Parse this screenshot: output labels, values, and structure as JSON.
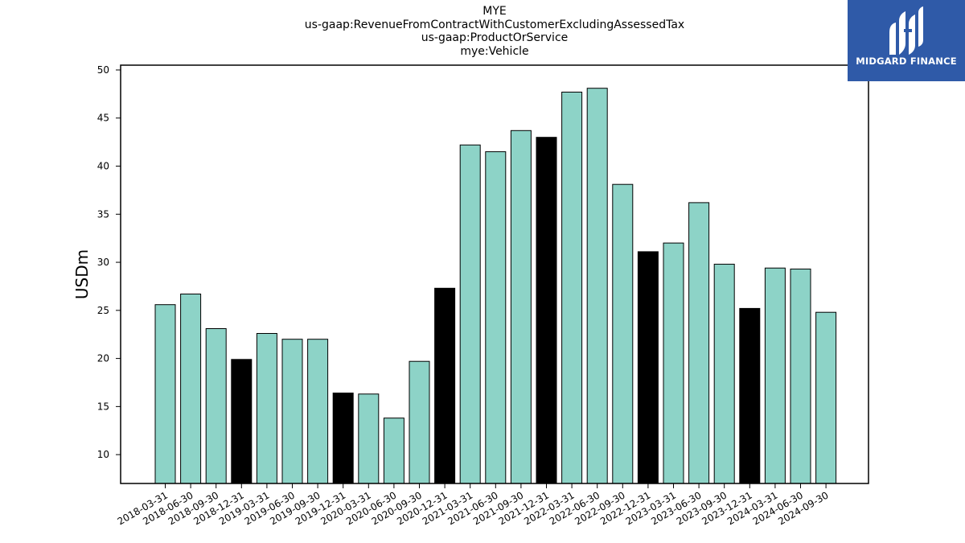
{
  "title_lines": [
    "MYE",
    "us-gaap:RevenueFromContractWithCustomerExcludingAssessedTax",
    "us-gaap:ProductOrService",
    "mye:Vehicle"
  ],
  "logo": {
    "text": "MIDGARD FINANCE",
    "icon": "midgard-logo-mark",
    "background": "#2f5aa8"
  },
  "colors": {
    "bar_default": "#8dd3c7",
    "bar_highlight": "#000000",
    "edge": "#000000"
  },
  "chart_data": {
    "type": "bar",
    "title": "MYE us-gaap:RevenueFromContractWithCustomerExcludingAssessedTax us-gaap:ProductOrService mye:Vehicle",
    "xlabel": "",
    "ylabel": "USDm",
    "ylim": [
      7,
      50.5
    ],
    "yticks": [
      10,
      15,
      20,
      25,
      30,
      35,
      40,
      45,
      50
    ],
    "grid": false,
    "categories": [
      "2018-03-31",
      "2018-06-30",
      "2018-09-30",
      "2018-12-31",
      "2019-03-31",
      "2019-06-30",
      "2019-09-30",
      "2019-12-31",
      "2020-03-31",
      "2020-06-30",
      "2020-09-30",
      "2020-12-31",
      "2021-03-31",
      "2021-06-30",
      "2021-09-30",
      "2021-12-31",
      "2022-03-31",
      "2022-06-30",
      "2022-09-30",
      "2022-12-31",
      "2023-03-31",
      "2023-06-30",
      "2023-09-30",
      "2023-12-31",
      "2024-03-31",
      "2024-06-30",
      "2024-09-30"
    ],
    "values": [
      25.6,
      26.7,
      23.1,
      19.9,
      22.6,
      22.0,
      22.0,
      16.4,
      16.3,
      13.8,
      19.7,
      27.3,
      42.2,
      41.5,
      43.7,
      43.0,
      47.7,
      48.1,
      38.1,
      31.1,
      32.0,
      36.2,
      29.8,
      25.2,
      29.4,
      29.3,
      24.8
    ],
    "highlight_index": [
      3,
      7,
      11,
      15,
      19,
      23
    ]
  }
}
